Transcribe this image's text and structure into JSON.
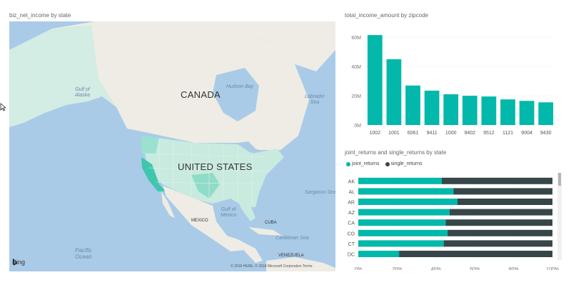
{
  "map_visual": {
    "title": "biz_net_income by state",
    "labels": {
      "canada": "CANADA",
      "united_states": "UNITED STATES",
      "mexico": "MEXICO",
      "cuba": "CUBA",
      "venezuela": "VENEZUELA",
      "gulf_alaska": "Gulf of\nAlaska",
      "hudson_bay": "Hudson Bay",
      "labrador_sea": "Labrador\nSea",
      "gulf_mexico": "Gulf of\nMexico",
      "sargasso": "Sargasso Sea",
      "caribbean": "Caribbean Sea",
      "pacific": "Pacific\nOcean"
    },
    "attribution": "© 2018 HERE, © 2018 Microsoft Corporation  Terms",
    "bing": "Bing",
    "colors": {
      "water": "#a9cbe8",
      "land": "#eeece4",
      "us": "#c9eadf",
      "highlight": "#66d1bd",
      "ca": "#3fc6ad"
    }
  },
  "bar_visual": {
    "title": "total_income_amount by zipcode",
    "color": "#01b8aa"
  },
  "stack_visual": {
    "title": "joint_returns and single_returns by state",
    "legend": [
      {
        "label": "joint_returns",
        "color": "#01b8aa"
      },
      {
        "label": "single_returns",
        "color": "#374649"
      }
    ]
  },
  "chart_data": [
    {
      "type": "bar",
      "title": "total_income_amount by zipcode",
      "categories": [
        "1002",
        "1001",
        "6061",
        "9411",
        "1000",
        "9402",
        "9512",
        "1121",
        "9004",
        "9430"
      ],
      "values": [
        61500000,
        45000000,
        27000000,
        23500000,
        21000000,
        20000000,
        19500000,
        17500000,
        16500000,
        15500000
      ],
      "ylim": [
        0,
        64000000
      ],
      "yticks": [
        "0M",
        "20M",
        "40M",
        "60M"
      ],
      "ytick_values": [
        0,
        20000000,
        40000000,
        60000000
      ],
      "grid": true
    },
    {
      "type": "bar",
      "orientation": "horizontal",
      "stacked": "100%",
      "title": "joint_returns and single_returns by state",
      "categories": [
        "AK",
        "AL",
        "AR",
        "AZ",
        "CA",
        "CO",
        "CT",
        "DC"
      ],
      "series": [
        {
          "name": "joint_returns",
          "values": [
            0.43,
            0.49,
            0.51,
            0.47,
            0.45,
            0.46,
            0.44,
            0.21
          ]
        },
        {
          "name": "single_returns",
          "values": [
            0.57,
            0.51,
            0.49,
            0.53,
            0.55,
            0.54,
            0.56,
            0.79
          ]
        }
      ],
      "xticks": [
        "0%",
        "20%",
        "40%",
        "60%",
        "80%",
        "100%"
      ],
      "xtick_values": [
        0,
        0.2,
        0.4,
        0.6,
        0.8,
        1.0
      ],
      "grid": true
    }
  ]
}
